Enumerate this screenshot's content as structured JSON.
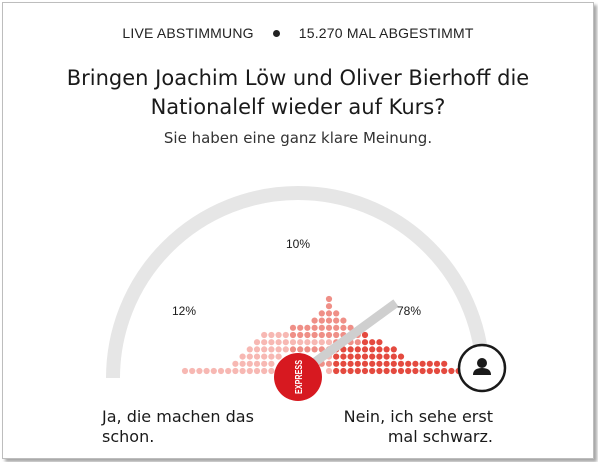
{
  "header": {
    "live_label": "LIVE ABSTIMMUNG",
    "votes_label": "15.270 MAL ABGESTIMMT"
  },
  "question": {
    "line1": "Bringen Joachim Löw und Oliver Bierhoff die",
    "line2": "Nationalelf wieder auf Kurs?",
    "subtitle": "Sie haben eine ganz klare Meinung."
  },
  "gauge": {
    "percent_left": "12%",
    "percent_middle": "10%",
    "percent_right": "78%",
    "shares": [
      0.12,
      0.1,
      0.78
    ],
    "pointer_value": 0.78,
    "logo_text": "EXPRESS",
    "colors": {
      "arc": "#e6e6e6",
      "pointer": "#cfcfcf",
      "dot_light": "#f7b8b3",
      "dot_mid": "#ef8f87",
      "dot_strong": "#e44a3f",
      "logo_bg": "#d71920",
      "handle_border": "#1a1a1a"
    },
    "handle_icon": "user-icon"
  },
  "answers": {
    "left": [
      "Ja, die machen das",
      "schon."
    ],
    "right": [
      "Nein, ich sehe erst",
      "mal schwarz."
    ]
  }
}
